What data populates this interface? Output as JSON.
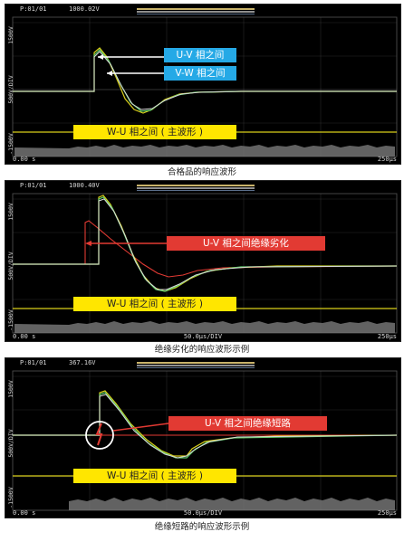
{
  "panels": [
    {
      "header_channel": "P:01/01",
      "header_value": "1000.02V",
      "y_top": "1500V",
      "y_mid": "500V/DIV",
      "y_bot": "-1500V",
      "x_left": "0.00 s",
      "x_center": "",
      "x_right": "250μs",
      "callouts": [
        "U-V 相之间",
        "V-W 相之间",
        "W-U 相之间 ( 主波形 )"
      ],
      "caption": "合格品的响应波形"
    },
    {
      "header_channel": "P:01/01",
      "header_value": "1000.40V",
      "y_top": "1500V",
      "y_mid": "500V/DIV",
      "y_bot": "-1500V",
      "x_left": "0.00 s",
      "x_center": "50.0μs/DIV",
      "x_right": "250μs",
      "callouts": [
        "U-V 相之间绝缘劣化",
        "W-U 相之间 ( 主波形 )"
      ],
      "caption": "绝缘劣化的响应波形示例"
    },
    {
      "header_channel": "P:01/01",
      "header_value": "367.16V",
      "y_top": "1500V",
      "y_mid": "500V/DIV",
      "y_bot": "-1500V",
      "x_left": "0.00 s",
      "x_center": "50.0μs/DIV",
      "x_right": "250μs",
      "callouts": [
        "U-V 相之间绝缘短路",
        "W-U 相之间 ( 主波形 )"
      ],
      "caption": "绝缘短路的响应波形示例"
    }
  ],
  "colors": {
    "accent_blue": "#25a9e6",
    "accent_red": "#e23a33",
    "accent_yellow": "#ffe600"
  }
}
